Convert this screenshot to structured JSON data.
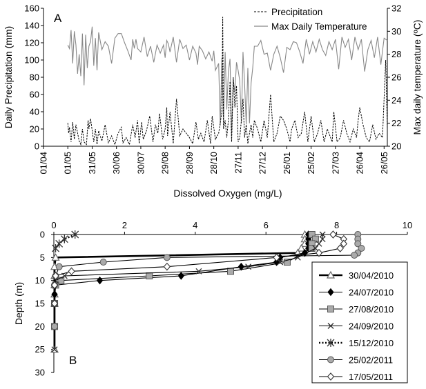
{
  "chart_data": [
    {
      "type": "line",
      "panel_label": "A",
      "xlabel": "",
      "ylabel": "Daily Precipitation (mm)",
      "y2label": "Max daily temperature (ºC)",
      "ylim": [
        0,
        160
      ],
      "y2lim": [
        20,
        32
      ],
      "yticks": [
        "0",
        "20",
        "40",
        "60",
        "80",
        "100",
        "120",
        "140",
        "160"
      ],
      "y2ticks": [
        "20",
        "22",
        "24",
        "26",
        "28",
        "30",
        "32"
      ],
      "xticks": [
        "01/04",
        "01/05",
        "31/05",
        "30/06",
        "30/07",
        "29/08",
        "28/09",
        "28/10",
        "27/11",
        "27/12",
        "26/01",
        "25/02",
        "27/03",
        "26/04",
        "26/05"
      ],
      "x_period": "2010-04-01 to 2011-05-31 (day index 0 = 01/04)",
      "legend_position": "top-right",
      "series": [
        {
          "name": "Precipitation",
          "axis": "left",
          "style": "dashed",
          "color": "#000000",
          "x": [
            30,
            31,
            32,
            34,
            36,
            38,
            40,
            44,
            46,
            48,
            50,
            53,
            55,
            56,
            58,
            62,
            64,
            66,
            68,
            72,
            76,
            80,
            84,
            88,
            92,
            96,
            98,
            102,
            106,
            110,
            113,
            116,
            118,
            121,
            123,
            127,
            131,
            135,
            138,
            141,
            143,
            147,
            150,
            152,
            153,
            156,
            160,
            164,
            168,
            172,
            176,
            180,
            184,
            188,
            191,
            194,
            198,
            202,
            206,
            208,
            212,
            216,
            220,
            221,
            222,
            224,
            226,
            228,
            230,
            232,
            234,
            236,
            238,
            240,
            242,
            244,
            246,
            248,
            250,
            252,
            254,
            256,
            258,
            260,
            264,
            268,
            272,
            276,
            280,
            284,
            288,
            292,
            296,
            300,
            304,
            306,
            310,
            314,
            318,
            322,
            326,
            330,
            334,
            338,
            342,
            346,
            350,
            354,
            356,
            358,
            362,
            366,
            370,
            374,
            378,
            382,
            386,
            388,
            390,
            394,
            398,
            402,
            406,
            410,
            414,
            418,
            422,
            424
          ],
          "y": [
            27,
            15,
            22,
            5,
            28,
            8,
            25,
            6,
            2,
            20,
            5,
            2,
            30,
            20,
            32,
            5,
            20,
            2,
            18,
            6,
            25,
            4,
            12,
            2,
            15,
            22,
            4,
            10,
            2,
            25,
            10,
            30,
            3,
            28,
            8,
            18,
            35,
            5,
            25,
            15,
            38,
            8,
            20,
            45,
            12,
            40,
            3,
            55,
            12,
            20,
            15,
            10,
            3,
            28,
            8,
            15,
            5,
            30,
            3,
            35,
            8,
            15,
            40,
            150,
            20,
            30,
            10,
            30,
            75,
            5,
            80,
            45,
            70,
            5,
            10,
            30,
            55,
            10,
            25,
            3,
            15,
            25,
            10,
            30,
            20,
            5,
            30,
            10,
            60,
            5,
            15,
            35,
            30,
            20,
            5,
            20,
            30,
            10,
            15,
            40,
            5,
            35,
            5,
            15,
            30,
            5,
            20,
            10,
            5,
            40,
            5,
            10,
            30,
            15,
            5,
            20,
            10,
            30,
            45,
            25,
            10,
            5,
            25,
            8,
            15,
            10,
            100,
            20
          ]
        },
        {
          "name": "Max Daily Temperature",
          "axis": "right",
          "style": "solid",
          "color": "#888888",
          "x": [
            30,
            32,
            34,
            36,
            38,
            40,
            42,
            44,
            46,
            48,
            50,
            52,
            54,
            56,
            58,
            60,
            62,
            64,
            66,
            68,
            72,
            76,
            80,
            84,
            88,
            92,
            96,
            100,
            104,
            108,
            110,
            112,
            114,
            116,
            120,
            124,
            128,
            132,
            136,
            140,
            144,
            148,
            150,
            152,
            154,
            156,
            160,
            164,
            168,
            172,
            176,
            180,
            184,
            188,
            190,
            192,
            196,
            200,
            204,
            208,
            210,
            212,
            216,
            218,
            220,
            222,
            224,
            226,
            228,
            230,
            232,
            234,
            236,
            238,
            240,
            242,
            244,
            246,
            248,
            250,
            252,
            254,
            256,
            258,
            260,
            264,
            268,
            272,
            276,
            280,
            284,
            288,
            292,
            296,
            300,
            304,
            308,
            312,
            316,
            320,
            324,
            328,
            332,
            336,
            340,
            344,
            348,
            352,
            356,
            360,
            364,
            368,
            372,
            376,
            380,
            384,
            388,
            392,
            396,
            400,
            404,
            408,
            412,
            416,
            420,
            424
          ],
          "y": [
            28.8,
            28.5,
            30.1,
            27.2,
            30,
            28.8,
            26.3,
            28,
            26.1,
            29.8,
            25.3,
            29.7,
            26.8,
            28.7,
            29.1,
            30.4,
            27,
            29.4,
            26.6,
            29.9,
            28.4,
            29.1,
            28.7,
            27.2,
            29.4,
            29.8,
            29.8,
            29,
            28.3,
            27.5,
            29.3,
            28.5,
            29.3,
            28.5,
            28.2,
            29.5,
            27.8,
            28.7,
            27.3,
            28.8,
            28.1,
            28.8,
            27.7,
            29.2,
            28.9,
            28.2,
            29.5,
            27.3,
            29.3,
            28.5,
            28.8,
            27.5,
            28.7,
            28.1,
            27.1,
            28.7,
            28.3,
            27.6,
            28.2,
            27.4,
            28.3,
            26.6,
            27.2,
            21.8,
            27.7,
            21.8,
            28.2,
            23.2,
            26.5,
            27.6,
            21,
            25.8,
            24.7,
            27.3,
            26.6,
            25.7,
            22,
            28.2,
            25.4,
            21.9,
            26.8,
            22,
            25.5,
            26.8,
            28.7,
            28.7,
            29.2,
            28,
            28.1,
            26.6,
            28,
            28.7,
            27.7,
            26.4,
            28.6,
            28.4,
            29.1,
            29,
            28.2,
            27.2,
            29.3,
            28,
            29.1,
            28.2,
            29.3,
            28.4,
            27.9,
            29.1,
            28.4,
            29.3,
            26.7,
            29.5,
            28.6,
            29.3,
            27.5,
            29.5,
            28.4,
            29.3,
            26.5,
            28.4,
            29.2,
            27.7,
            29.5,
            27.1,
            29.4,
            29.2
          ]
        }
      ]
    },
    {
      "type": "line",
      "panel_label": "B",
      "title": "Dissolved Oxygen (mg/L)",
      "xlabel": "Dissolved Oxygen (mg/L)",
      "ylabel": "Depth (m)",
      "xlim": [
        0,
        10
      ],
      "ylim": [
        0,
        30
      ],
      "y_inverted": true,
      "xticks": [
        "0",
        "2",
        "4",
        "6",
        "8",
        "10"
      ],
      "yticks": [
        "0",
        "5",
        "10",
        "15",
        "20",
        "25",
        "30"
      ],
      "legend_position": "bottom-right",
      "series": [
        {
          "name": "30/04/2010",
          "marker": "triangle",
          "style": "solid-thick",
          "x": [
            7.1,
            7.1,
            7.1,
            7.0,
            6.9,
            0.05,
            0.02,
            0.02,
            0.02,
            0.02,
            0.02,
            0.02
          ],
          "y": [
            0,
            1,
            2,
            3,
            4,
            5,
            7,
            9,
            11,
            13,
            15,
            25
          ]
        },
        {
          "name": "24/07/2010",
          "marker": "diamond-filled",
          "style": "solid",
          "x": [
            7.2,
            7.2,
            7.2,
            7.2,
            7.1,
            6.4,
            6.3,
            5.3,
            3.6,
            1.3,
            0.05,
            0.02,
            0.02,
            0.02
          ],
          "y": [
            0,
            1,
            2,
            3,
            4,
            5,
            6,
            7,
            9,
            10,
            11,
            13,
            15,
            20
          ]
        },
        {
          "name": "27/08/2010",
          "marker": "square",
          "style": "solid",
          "x": [
            7.3,
            7.4,
            7.3,
            7.3,
            6.6,
            5.0,
            2.7,
            0.2,
            0.05,
            0.02,
            0.02
          ],
          "y": [
            0,
            1,
            2,
            3,
            6,
            8,
            9,
            10,
            11,
            15,
            20
          ]
        },
        {
          "name": "24/09/2010",
          "marker": "cross",
          "style": "solid",
          "x": [
            7.6,
            7.6,
            7.5,
            7.4,
            6.9,
            6.4,
            5.5,
            4.1,
            0.3,
            0.05,
            0.02,
            0.02
          ],
          "y": [
            0,
            1,
            2,
            3,
            5,
            6,
            7,
            8,
            9,
            10,
            15,
            25
          ]
        },
        {
          "name": "15/12/2010",
          "marker": "asterisk",
          "style": "dotted-thick",
          "x": [
            0.6,
            0.3,
            0.15,
            0.05
          ],
          "y": [
            0,
            1,
            2,
            3
          ]
        },
        {
          "name": "25/02/2011",
          "marker": "circle",
          "style": "solid",
          "x": [
            8.6,
            8.6,
            8.6,
            8.7,
            8.6,
            8.5,
            3.2,
            1.4,
            0.15,
            0.05,
            0.02,
            0.02
          ],
          "y": [
            0,
            1,
            2,
            3,
            4,
            4.5,
            5,
            6,
            7,
            9,
            11,
            20
          ]
        },
        {
          "name": "17/05/2011",
          "marker": "diamond-open",
          "style": "solid",
          "x": [
            7.9,
            8.2,
            8.2,
            8.1,
            7.5,
            6.3,
            3.2,
            0.5,
            0.05,
            0.02,
            0.02
          ],
          "y": [
            0,
            1,
            2,
            3,
            4,
            5,
            7,
            8,
            9,
            11,
            15
          ]
        }
      ]
    }
  ]
}
